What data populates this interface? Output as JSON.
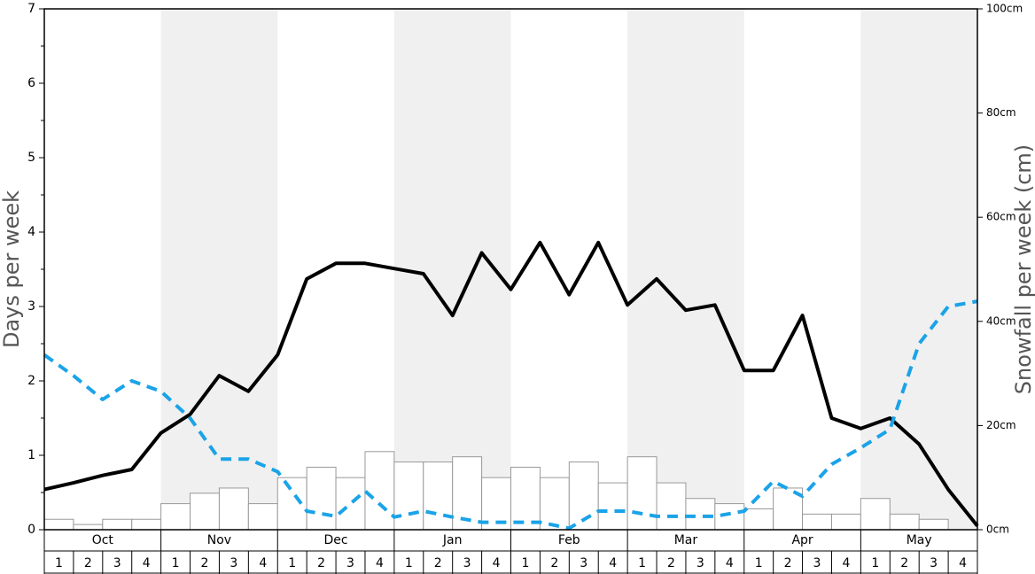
{
  "chart_data": {
    "type": "bar-line",
    "y_label": "Days per week",
    "y2_label": "Snowfall per week (cm)",
    "months": [
      "Oct",
      "Nov",
      "Dec",
      "Jan",
      "Feb",
      "Mar",
      "Apr",
      "May"
    ],
    "weeks": [
      "1",
      "2",
      "3",
      "4"
    ],
    "ylim": [
      0,
      7
    ],
    "yticks": [
      0,
      1,
      2,
      3,
      4,
      5,
      6,
      7
    ],
    "y2lim": [
      0,
      100
    ],
    "y2ticks": [
      {
        "value": 0,
        "label": "0cm"
      },
      {
        "value": 20,
        "label": "20cm"
      },
      {
        "value": 40,
        "label": "40cm"
      },
      {
        "value": 60,
        "label": "60cm"
      },
      {
        "value": 80,
        "label": "80cm"
      },
      {
        "value": 100,
        "label": "100cm"
      }
    ],
    "bars": {
      "axis": "y2",
      "color": "#ffffff",
      "values": [
        2,
        1,
        2,
        2,
        5,
        7,
        8,
        5,
        10,
        12,
        10,
        15,
        13,
        13,
        14,
        10,
        12,
        10,
        13,
        9,
        14,
        9,
        6,
        5,
        4,
        8,
        3,
        3,
        6,
        3,
        2,
        0
      ]
    },
    "series": [
      {
        "color": "#000000",
        "values": [
          0.54,
          0.63,
          0.73,
          0.81,
          1.3,
          1.55,
          2.07,
          1.86,
          2.35,
          3.37,
          3.58,
          3.58,
          3.51,
          3.44,
          2.88,
          3.72,
          3.23,
          3.86,
          3.16,
          3.86,
          3.02,
          3.37,
          2.95,
          3.02,
          2.14,
          2.14,
          2.88,
          1.5,
          1.36,
          1.5,
          1.15,
          0.54,
          0.05
        ]
      },
      {
        "color": "#1aa3e8",
        "dashed": true,
        "values": [
          2.35,
          2.07,
          1.75,
          2.0,
          1.86,
          1.5,
          0.95,
          0.95,
          0.78,
          0.25,
          0.18,
          0.52,
          0.17,
          0.25,
          0.17,
          0.1,
          0.1,
          0.1,
          0.02,
          0.25,
          0.25,
          0.18,
          0.18,
          0.18,
          0.25,
          0.65,
          0.45,
          0.88,
          1.1,
          1.35,
          2.5,
          3.0,
          3.07
        ]
      }
    ]
  }
}
